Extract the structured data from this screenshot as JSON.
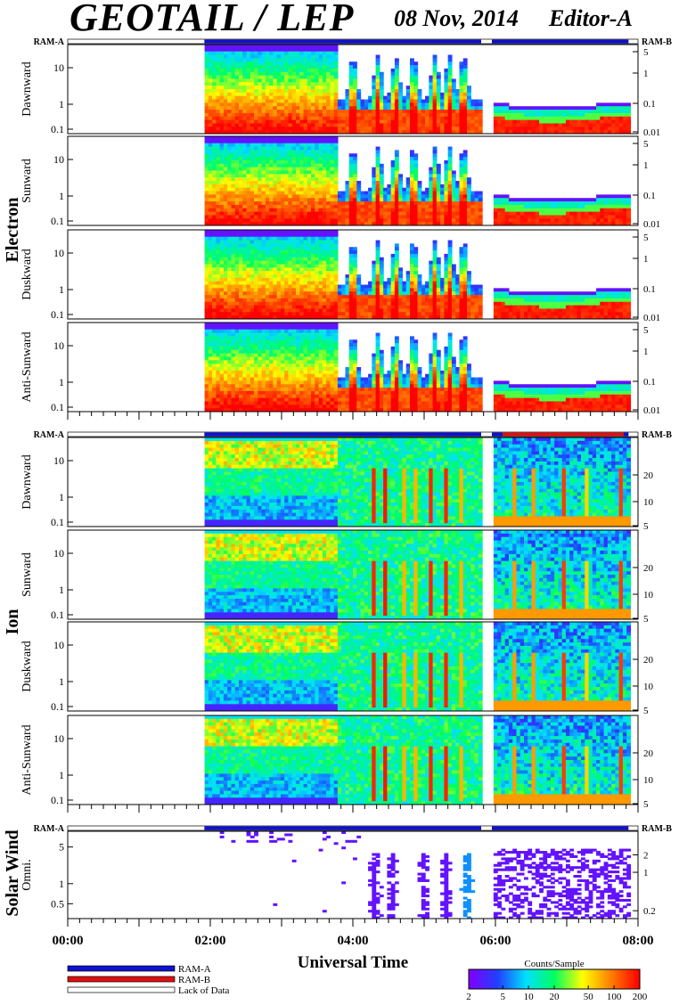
{
  "header": {
    "title": "GEOTAIL / LEP",
    "date": "08 Nov, 2014",
    "editor": "Editor-A"
  },
  "colors": {
    "ram_a": "#1010d0",
    "ram_b": "#e01010",
    "lack_of_data": "#ffffff",
    "colorbar_stops": [
      "#8000ff",
      "#2040ff",
      "#00e0ff",
      "#00ff60",
      "#ffff00",
      "#ff8000",
      "#ff0000"
    ]
  },
  "chart_data": [
    {
      "type": "heatmap",
      "group": "Electron",
      "xlabel": "Universal Time",
      "x_ticks": [
        "00:00",
        "02:00",
        "04:00",
        "06:00",
        "08:00"
      ],
      "xlim": [
        "00:00",
        "08:00"
      ],
      "ram_labels": {
        "left": "RAM-A",
        "right": "RAM-B"
      },
      "panels": [
        {
          "ylabel": "Dawnward",
          "y_ticks_left": [
            "10",
            "1",
            "0.1"
          ],
          "y_ticks_right": [
            "5",
            "1",
            "0.1",
            "0.01"
          ]
        },
        {
          "ylabel": "Sunward",
          "y_ticks_left": [
            "10",
            "1",
            "0.1"
          ],
          "y_ticks_right": [
            "5",
            "1",
            "0.1",
            "0.01"
          ]
        },
        {
          "ylabel": "Duskward",
          "y_ticks_left": [
            "10",
            "1",
            "0.1"
          ],
          "y_ticks_right": [
            "5",
            "1",
            "0.1",
            "0.01"
          ]
        },
        {
          "ylabel": "Anti-Sunward",
          "y_ticks_left": [
            "10",
            "1",
            "0.1"
          ],
          "y_ticks_right": [
            "5",
            "1",
            "0.1",
            "0.01"
          ]
        }
      ],
      "data_coverage": [
        "01:55",
        "05:48",
        "05:57",
        "07:52"
      ]
    },
    {
      "type": "heatmap",
      "group": "Ion",
      "ram_labels": {
        "left": "RAM-A",
        "right": "RAM-B"
      },
      "panels": [
        {
          "ylabel": "Dawnward",
          "y_ticks_left": [
            "10",
            "1",
            "0.1"
          ],
          "y_ticks_right": [
            "20",
            "10",
            "5"
          ]
        },
        {
          "ylabel": "Sunward",
          "y_ticks_left": [
            "10",
            "1",
            "0.1"
          ],
          "y_ticks_right": [
            "20",
            "10",
            "5"
          ]
        },
        {
          "ylabel": "Duskward",
          "y_ticks_left": [
            "10",
            "1",
            "0.1"
          ],
          "y_ticks_right": [
            "20",
            "10",
            "5"
          ]
        },
        {
          "ylabel": "Anti-Sunward",
          "y_ticks_left": [
            "10",
            "1",
            "0.1"
          ],
          "y_ticks_right": [
            "20",
            "10",
            "5"
          ]
        }
      ]
    },
    {
      "type": "heatmap",
      "group": "Solar Wind",
      "ram_labels": {
        "left": "RAM-A",
        "right": "RAM-B"
      },
      "panels": [
        {
          "ylabel": "Omni.",
          "y_ticks_left": [
            "5",
            "1",
            "0.5"
          ],
          "y_ticks_right": [
            "2",
            "1",
            "0.2"
          ]
        }
      ]
    }
  ],
  "legend": {
    "items": [
      {
        "label": "RAM-A",
        "color": "#1010d0"
      },
      {
        "label": "RAM-B",
        "color": "#e01010"
      },
      {
        "label": "Lack of Data",
        "color": "#ffffff"
      }
    ]
  },
  "colorbar": {
    "title": "Counts/Sample",
    "ticks": [
      "2",
      "5",
      "10",
      "20",
      "50",
      "100",
      "200"
    ],
    "range": [
      2,
      200
    ],
    "scale": "log"
  }
}
